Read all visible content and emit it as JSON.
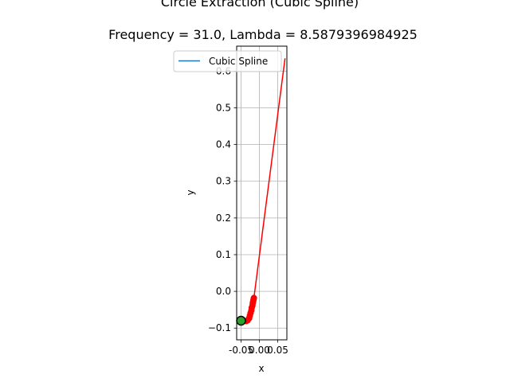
{
  "chart_data": {
    "type": "line",
    "suptitle": "Circle Extraction (Cubic Spline)",
    "title": "Frequency = 31.0, Lambda = 8.5879396984925",
    "xlabel": "x",
    "ylabel": "y",
    "xlim": [
      -0.062,
      0.075
    ],
    "ylim": [
      -0.132,
      0.668
    ],
    "xticks": [
      {
        "value": -0.05,
        "label": "-0.05"
      },
      {
        "value": 0.0,
        "label": "0.00"
      },
      {
        "value": 0.05,
        "label": "0.05"
      }
    ],
    "yticks": [
      {
        "value": -0.1,
        "label": "−0.1"
      },
      {
        "value": 0.0,
        "label": "0.0"
      },
      {
        "value": 0.1,
        "label": "0.1"
      },
      {
        "value": 0.2,
        "label": "0.2"
      },
      {
        "value": 0.3,
        "label": "0.3"
      },
      {
        "value": 0.4,
        "label": "0.4"
      },
      {
        "value": 0.5,
        "label": "0.5"
      },
      {
        "value": 0.6,
        "label": "0.6"
      }
    ],
    "grid": true,
    "legend": {
      "placement": "upper-left",
      "entries": [
        "Cubic Spline"
      ]
    },
    "series": [
      {
        "name": "Cubic Spline",
        "color": "#1f77b4",
        "style": "line",
        "x": [],
        "y": []
      },
      {
        "color": "#ff0000",
        "style": "line",
        "x": [
          -0.015,
          0.07
        ],
        "y": [
          -0.018,
          0.635
        ]
      },
      {
        "color": "#ff0000",
        "style": "markers",
        "x": [
          -0.05,
          -0.043,
          -0.036,
          -0.032,
          -0.028,
          -0.026,
          -0.024,
          -0.022,
          -0.021,
          -0.019,
          -0.018,
          -0.017,
          -0.016,
          -0.015
        ],
        "y": [
          -0.079,
          -0.081,
          -0.081,
          -0.079,
          -0.073,
          -0.066,
          -0.059,
          -0.052,
          -0.045,
          -0.039,
          -0.032,
          -0.027,
          -0.022,
          -0.018
        ]
      },
      {
        "color": "#2ca02c",
        "edgecolor": "#000000",
        "style": "point",
        "x": [
          -0.05
        ],
        "y": [
          -0.08
        ]
      }
    ]
  }
}
